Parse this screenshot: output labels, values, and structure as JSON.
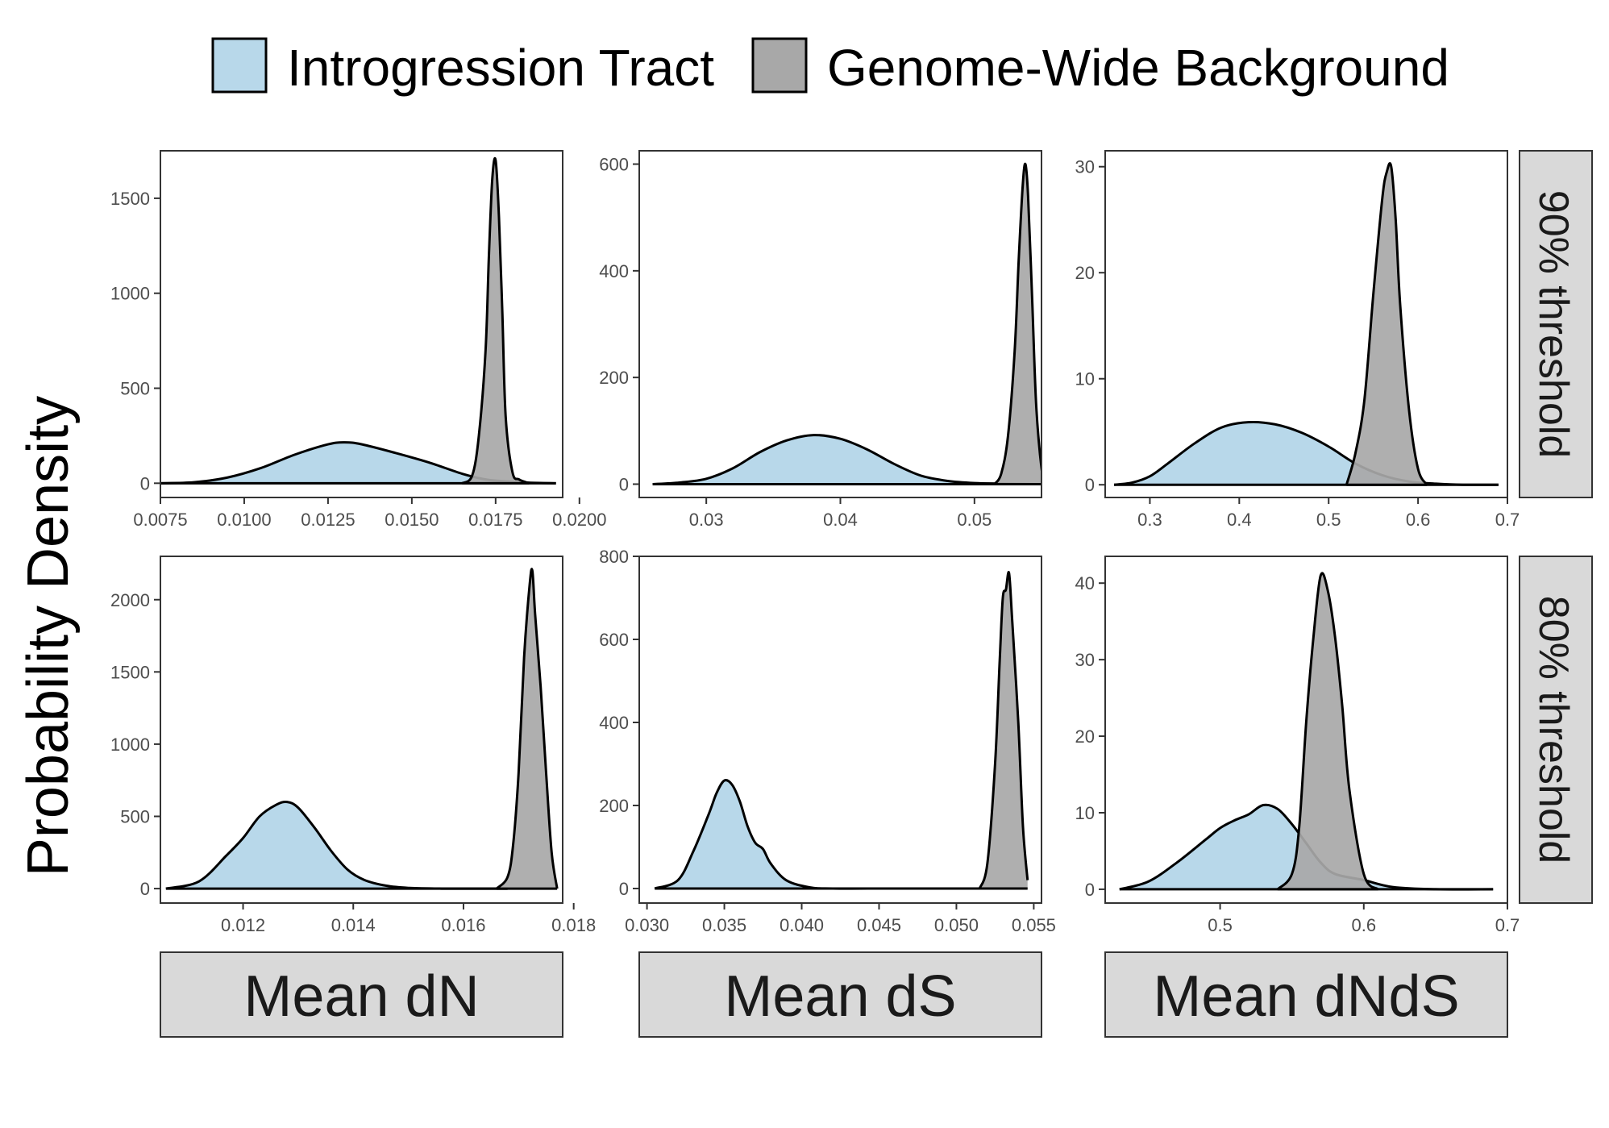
{
  "chart_data": {
    "type": "area",
    "ylabel": "Probability Density",
    "legend": {
      "position": "top",
      "entries": [
        {
          "label": "Introgression Tract",
          "color": "#b8d8ea"
        },
        {
          "label": "Genome-Wide Background",
          "color": "#a8a8a8"
        }
      ]
    },
    "columns": [
      "Mean dN",
      "Mean dS",
      "Mean dNdS"
    ],
    "rows": [
      "90% threshold",
      "80% threshold"
    ],
    "panels": [
      {
        "row": 0,
        "col": 0,
        "xlim": [
          0.0075,
          0.0195
        ],
        "ylim": [
          -75,
          1750
        ],
        "xticks": [
          0.0075,
          0.01,
          0.0125,
          0.015,
          0.0175,
          0.02
        ],
        "xtick_labels": [
          "0.0075",
          "0.0100",
          "0.0125",
          "0.0150",
          "0.0175",
          "0.0200"
        ],
        "yticks": [
          0,
          500,
          1000,
          1500
        ],
        "ytick_labels": [
          "0",
          "500",
          "1000",
          "1500"
        ],
        "series": [
          {
            "name": "Introgression Tract",
            "x": [
              0.0075,
              0.0085,
              0.0095,
              0.0105,
              0.0115,
              0.0125,
              0.013,
              0.0135,
              0.0145,
              0.0155,
              0.0165,
              0.0172,
              0.0178,
              0.0185,
              0.0193
            ],
            "y": [
              0,
              5,
              30,
              80,
              150,
              205,
              215,
              205,
              160,
              110,
              50,
              20,
              10,
              3,
              0
            ]
          },
          {
            "name": "Genome-Wide Background",
            "x": [
              0.0165,
              0.0168,
              0.017,
              0.0172,
              0.0173,
              0.0174,
              0.0175,
              0.0176,
              0.0177,
              0.0178,
              0.018,
              0.0182,
              0.0185
            ],
            "y": [
              0,
              40,
              250,
              700,
              1200,
              1600,
              1700,
              1400,
              900,
              350,
              60,
              20,
              0
            ]
          }
        ]
      },
      {
        "row": 0,
        "col": 1,
        "xlim": [
          0.025,
          0.055
        ],
        "ylim": [
          -25,
          625
        ],
        "xticks": [
          0.03,
          0.04,
          0.05
        ],
        "xtick_labels": [
          "0.03",
          "0.04",
          "0.05"
        ],
        "yticks": [
          0,
          200,
          400,
          600
        ],
        "ytick_labels": [
          "0",
          "200",
          "400",
          "600"
        ],
        "series": [
          {
            "name": "Introgression Tract",
            "x": [
              0.026,
              0.028,
              0.03,
              0.032,
              0.034,
              0.036,
              0.038,
              0.04,
              0.042,
              0.044,
              0.046,
              0.048,
              0.05,
              0.052,
              0.0545
            ],
            "y": [
              0,
              3,
              10,
              30,
              60,
              82,
              92,
              85,
              65,
              38,
              16,
              6,
              2,
              1,
              0
            ]
          },
          {
            "name": "Genome-Wide Background",
            "x": [
              0.0515,
              0.052,
              0.0525,
              0.053,
              0.0533,
              0.0536,
              0.0538,
              0.054,
              0.0543,
              0.0546,
              0.055,
              0.0553
            ],
            "y": [
              0,
              20,
              90,
              250,
              420,
              560,
              600,
              540,
              350,
              150,
              30,
              0
            ]
          }
        ]
      },
      {
        "row": 0,
        "col": 2,
        "xlim": [
          0.25,
          0.7
        ],
        "ylim": [
          -1.2,
          31.5
        ],
        "xticks": [
          0.3,
          0.4,
          0.5,
          0.6,
          0.7
        ],
        "xtick_labels": [
          "0.3",
          "0.4",
          "0.5",
          "0.6",
          "0.7"
        ],
        "yticks": [
          0,
          10,
          20,
          30
        ],
        "ytick_labels": [
          "0",
          "10",
          "20",
          "30"
        ],
        "series": [
          {
            "name": "Introgression Tract",
            "x": [
              0.26,
              0.28,
              0.3,
              0.32,
              0.35,
              0.38,
              0.41,
              0.44,
              0.47,
              0.5,
              0.53,
              0.56,
              0.59,
              0.62,
              0.65,
              0.69
            ],
            "y": [
              0,
              0.2,
              0.8,
              2,
              3.9,
              5.4,
              5.9,
              5.7,
              4.9,
              3.6,
              2,
              0.9,
              0.3,
              0.1,
              0,
              0
            ]
          },
          {
            "name": "Genome-Wide Background",
            "x": [
              0.52,
              0.53,
              0.54,
              0.55,
              0.56,
              0.565,
              0.57,
              0.575,
              0.58,
              0.59,
              0.6,
              0.61
            ],
            "y": [
              0,
              3,
              8,
              18,
              27,
              29.5,
              30,
              25,
              17,
              7,
              1.5,
              0
            ]
          }
        ]
      },
      {
        "row": 1,
        "col": 0,
        "xlim": [
          0.0105,
          0.0178
        ],
        "ylim": [
          -100,
          2300
        ],
        "xticks": [
          0.012,
          0.014,
          0.016,
          0.018
        ],
        "xtick_labels": [
          "0.012",
          "0.014",
          "0.016",
          "0.018"
        ],
        "yticks": [
          0,
          500,
          1000,
          1500,
          2000
        ],
        "ytick_labels": [
          "0",
          "500",
          "1000",
          "1500",
          "2000"
        ],
        "series": [
          {
            "name": "Introgression Tract",
            "x": [
              0.0106,
              0.0112,
              0.0117,
              0.012,
              0.0123,
              0.0126,
              0.0128,
              0.013,
              0.0133,
              0.0136,
              0.0139,
              0.0142,
              0.0146,
              0.015,
              0.0156,
              0.0162,
              0.0168
            ],
            "y": [
              0,
              50,
              230,
              350,
              500,
              580,
              600,
              560,
              420,
              260,
              130,
              60,
              20,
              5,
              0,
              0,
              0
            ]
          },
          {
            "name": "Genome-Wide Background",
            "x": [
              0.0166,
              0.0168,
              0.0169,
              0.017,
              0.0171,
              0.0172,
              0.01725,
              0.0173,
              0.0174,
              0.0175,
              0.0176,
              0.0177
            ],
            "y": [
              0,
              80,
              300,
              800,
              1600,
              2100,
              2200,
              1900,
              1400,
              800,
              250,
              0
            ]
          }
        ]
      },
      {
        "row": 1,
        "col": 1,
        "xlim": [
          0.0295,
          0.0555
        ],
        "ylim": [
          -35,
          800
        ],
        "xticks": [
          0.03,
          0.035,
          0.04,
          0.045,
          0.05,
          0.055
        ],
        "xtick_labels": [
          "0.030",
          "0.035",
          "0.040",
          "0.045",
          "0.050",
          "0.055"
        ],
        "yticks": [
          0,
          200,
          400,
          600,
          800
        ],
        "ytick_labels": [
          "0",
          "200",
          "400",
          "600",
          "800"
        ],
        "series": [
          {
            "name": "Introgression Tract",
            "x": [
              0.0305,
              0.032,
              0.033,
              0.034,
              0.0345,
              0.035,
              0.0355,
              0.036,
              0.0365,
              0.037,
              0.0375,
              0.038,
              0.039,
              0.0405,
              0.042,
              0.046,
              0.052
            ],
            "y": [
              0,
              20,
              90,
              180,
              230,
              260,
              250,
              210,
              150,
              110,
              95,
              60,
              20,
              3,
              0,
              0,
              0
            ]
          },
          {
            "name": "Genome-Wide Background",
            "x": [
              0.0515,
              0.052,
              0.0525,
              0.0528,
              0.053,
              0.0532,
              0.0534,
              0.0536,
              0.054,
              0.0543,
              0.0546
            ],
            "y": [
              0,
              60,
              300,
              550,
              700,
              720,
              760,
              650,
              400,
              150,
              20
            ]
          }
        ]
      },
      {
        "row": 1,
        "col": 2,
        "xlim": [
          0.42,
          0.7
        ],
        "ylim": [
          -1.8,
          43.5
        ],
        "xticks": [
          0.5,
          0.6,
          0.7
        ],
        "xtick_labels": [
          "0.5",
          "0.6",
          "0.7"
        ],
        "yticks": [
          0,
          10,
          20,
          30,
          40
        ],
        "ytick_labels": [
          "0",
          "10",
          "20",
          "30",
          "40"
        ],
        "series": [
          {
            "name": "Introgression Tract",
            "x": [
              0.43,
              0.45,
              0.47,
              0.49,
              0.5,
              0.51,
              0.52,
              0.53,
              0.54,
              0.55,
              0.56,
              0.57,
              0.58,
              0.6,
              0.62,
              0.65,
              0.69
            ],
            "y": [
              0,
              1,
              3.5,
              6.5,
              8,
              9,
              9.8,
              11,
              10.5,
              8.5,
              6,
              3.5,
              2,
              1.2,
              0.3,
              0,
              0
            ]
          },
          {
            "name": "Genome-Wide Background",
            "x": [
              0.54,
              0.55,
              0.555,
              0.56,
              0.565,
              0.57,
              0.575,
              0.58,
              0.585,
              0.59,
              0.6,
              0.61
            ],
            "y": [
              0,
              2,
              8,
              22,
              33,
              41,
              39,
              33,
              24,
              13,
              2,
              0
            ]
          }
        ]
      }
    ]
  },
  "colors": {
    "tract_fill": "#b8d8ea",
    "background_fill": "#a8a8a8",
    "outline": "#000000",
    "strip_fill": "#d9d9d9"
  }
}
